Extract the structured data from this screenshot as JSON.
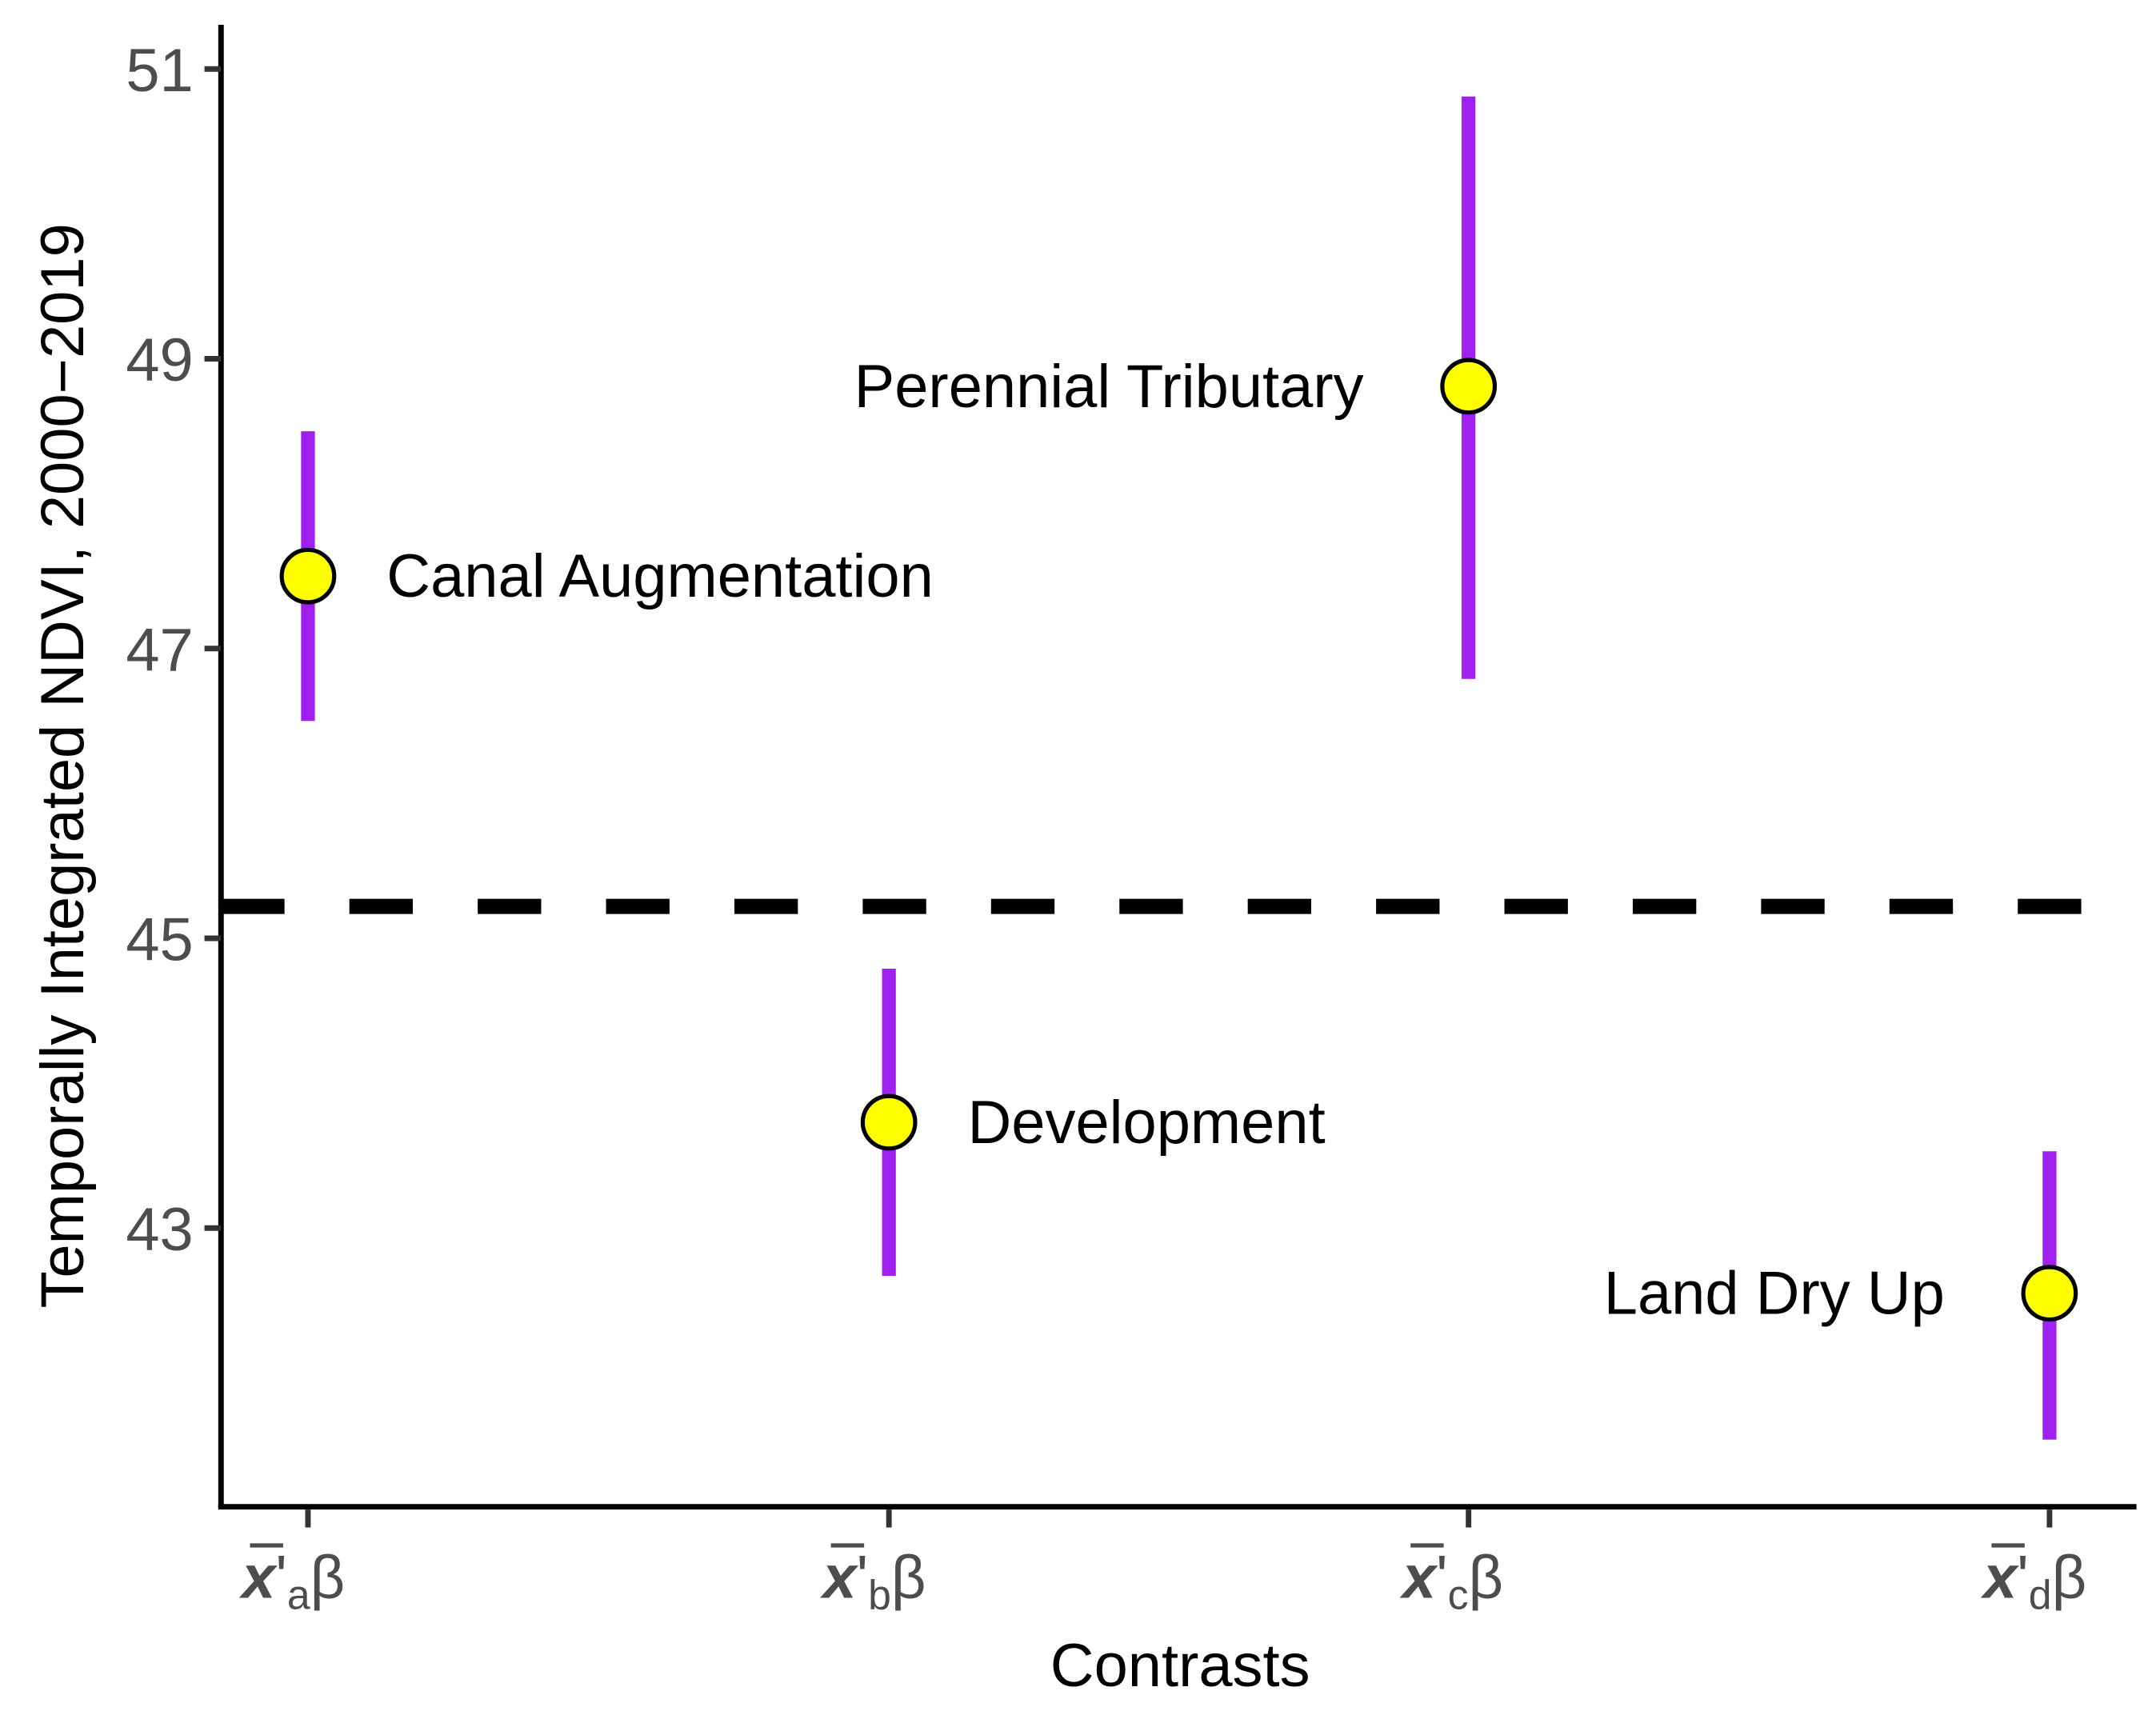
{
  "chart_data": {
    "type": "scatter",
    "title": "",
    "xlabel": "Contrasts",
    "ylabel": "Temporally Integrated NDVI, 2000−2019",
    "ylim": [
      41.08,
      51.3
    ],
    "yticks": [
      "43",
      "45",
      "47",
      "49",
      "51"
    ],
    "grid": false,
    "x_tick_parts": {
      "symbol": "x",
      "prime": "'",
      "suffix": "β"
    },
    "categories": [
      "a",
      "b",
      "c",
      "d"
    ],
    "points": [
      {
        "category": "a",
        "label": "Canal Augmentation",
        "label_side": "right",
        "y": 47.5,
        "lower": 46.5,
        "upper": 48.5
      },
      {
        "category": "b",
        "label": "Development",
        "label_side": "right",
        "y": 43.73,
        "lower": 42.67,
        "upper": 44.79
      },
      {
        "category": "c",
        "label": "Perennial Tributary",
        "label_side": "left",
        "y": 48.81,
        "lower": 46.79,
        "upper": 50.81
      },
      {
        "category": "d",
        "label": "Land Dry Up",
        "label_side": "left",
        "y": 42.55,
        "lower": 41.54,
        "upper": 43.53
      }
    ],
    "reference_line": {
      "y": 45.22,
      "style": "dashed"
    },
    "colors": {
      "errorbar": "#a020f0",
      "point_fill": "#ffff00",
      "point_stroke": "#000000",
      "reference": "#000000",
      "tick_label": "#4d4d4d"
    }
  }
}
